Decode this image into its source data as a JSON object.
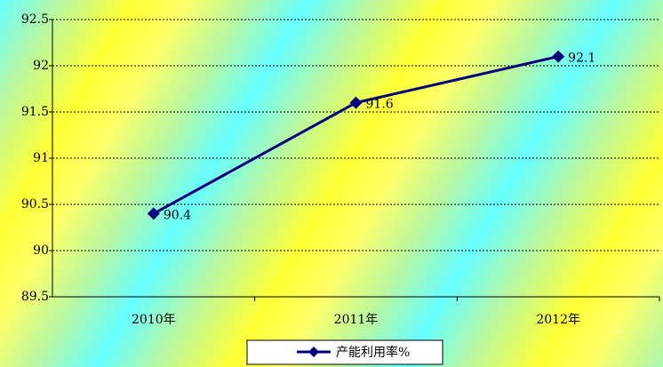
{
  "chart_data": {
    "type": "line",
    "categories": [
      "2010年",
      "2011年",
      "2012年"
    ],
    "series": [
      {
        "name": "产能利用率%",
        "color": "#000080",
        "values": [
          90.4,
          91.6,
          92.1
        ]
      }
    ],
    "ylim": [
      89.5,
      92.5
    ],
    "yticks": [
      89.5,
      90,
      90.5,
      91,
      91.5,
      92,
      92.5
    ],
    "grid": true,
    "legend": "bottom"
  }
}
